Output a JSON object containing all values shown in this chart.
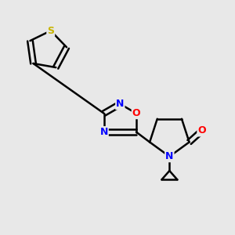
{
  "background_color": "#e8e8e8",
  "bond_color": "#000000",
  "atom_colors": {
    "S": "#c8b400",
    "O": "#ff0000",
    "N": "#0000ff",
    "C": "#000000"
  },
  "figsize": [
    3.0,
    3.0
  ],
  "dpi": 100
}
